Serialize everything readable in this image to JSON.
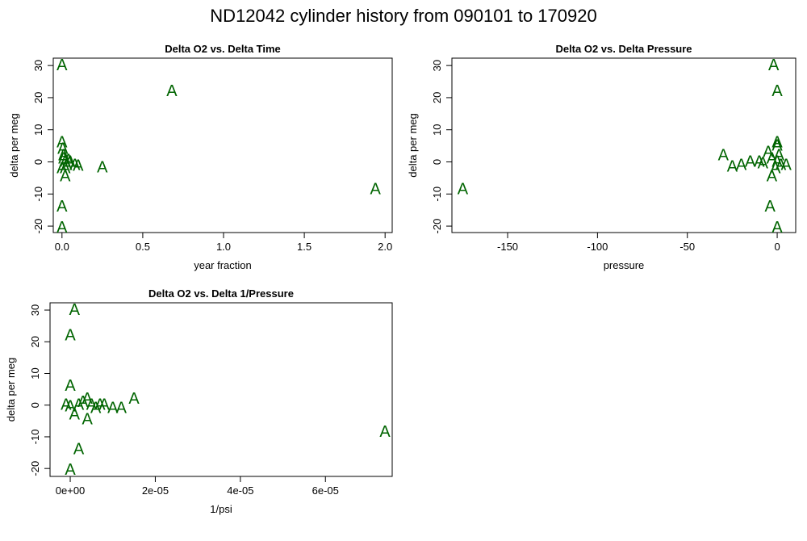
{
  "title": "ND12042   cylinder history from  090101  to  170920",
  "chart_data": [
    {
      "type": "scatter",
      "title": "Delta O2 vs. Delta Time",
      "xlabel": "year fraction",
      "ylabel": "delta per meg",
      "marker": "A",
      "color": "#006400",
      "xlim": [
        -0.054,
        2.044
      ],
      "ylim": [
        -22,
        32.3
      ],
      "xticks": [
        {
          "value": 0,
          "label": "0.0"
        },
        {
          "value": 0.5,
          "label": "0.5"
        },
        {
          "value": 1,
          "label": "1.0"
        },
        {
          "value": 1.5,
          "label": "1.5"
        },
        {
          "value": 2,
          "label": "2.0"
        }
      ],
      "yticks": [
        -20,
        -10,
        0,
        10,
        20,
        30
      ],
      "x": [
        0,
        0.68,
        1.94,
        0.25,
        0,
        0,
        0,
        0.005,
        0.01,
        0.02,
        0.03,
        0.05,
        0.08,
        0.1,
        0.02,
        0,
        0.01,
        0.04,
        0.02
      ],
      "y": [
        30,
        22,
        -8.5,
        -1.8,
        -14,
        -20.5,
        6,
        4,
        2,
        0,
        -1,
        0,
        -1,
        -1.3,
        -4.5,
        -2,
        1,
        0.5,
        -2
      ]
    },
    {
      "type": "scatter",
      "title": "Delta O2 vs. Delta Pressure",
      "xlabel": "pressure",
      "ylabel": "delta per meg",
      "marker": "A",
      "color": "#006400",
      "xlim": [
        -181,
        10.3
      ],
      "ylim": [
        -22,
        32.3
      ],
      "xticks": [
        -150,
        -100,
        -50,
        0
      ],
      "yticks": [
        -20,
        -10,
        0,
        10,
        20,
        30
      ],
      "x": [
        -175,
        -2,
        0,
        0,
        0,
        -30,
        -25,
        -20,
        -15,
        -10,
        -5,
        -3,
        0,
        2,
        5,
        -3,
        -4,
        0,
        -8,
        1,
        -1
      ],
      "y": [
        -8.5,
        30,
        22,
        6,
        5,
        2,
        -1.5,
        -1,
        0,
        0,
        3,
        1,
        0,
        -1,
        -1,
        -4.5,
        -14,
        -20.5,
        -0.5,
        2,
        -2
      ]
    },
    {
      "type": "scatter",
      "title": "Delta O2 vs. Delta 1/Pressure",
      "xlabel": "1/psi",
      "ylabel": "delta per meg",
      "marker": "A",
      "color": "#006400",
      "xlim": [
        -4.75e-06,
        7.57e-05
      ],
      "ylim": [
        -22.5,
        32.3
      ],
      "xticks": [
        {
          "value": 0,
          "label": "0e+00"
        },
        {
          "value": 2e-05,
          "label": "2e-05"
        },
        {
          "value": 4e-05,
          "label": "4e-05"
        },
        {
          "value": 6e-05,
          "label": "6e-05"
        }
      ],
      "yticks": [
        -20,
        -10,
        0,
        10,
        20,
        30
      ],
      "x": [
        7.4e-05,
        1e-06,
        0,
        0,
        2e-06,
        0,
        4e-06,
        1.5e-05,
        1.2e-05,
        1e-05,
        8e-06,
        7e-06,
        5e-06,
        3e-06,
        2e-06,
        0,
        -1e-06,
        1e-06,
        4e-06,
        6e-06
      ],
      "y": [
        -8.5,
        30,
        22,
        6,
        -14,
        -20.5,
        -4.5,
        2,
        -1,
        -1,
        0,
        0,
        0,
        1,
        0,
        -0.5,
        0,
        -3,
        2,
        -1
      ]
    }
  ]
}
